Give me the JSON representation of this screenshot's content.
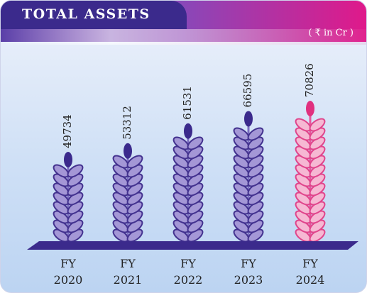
{
  "chart_data": {
    "type": "bar",
    "title": "TOTAL ASSETS",
    "subtitle": "( ₹ in Cr )",
    "categories": [
      "FY 2020",
      "FY 2021",
      "FY 2022",
      "FY 2023",
      "FY 2024"
    ],
    "values": [
      49734,
      53312,
      61531,
      66595,
      70826
    ],
    "colors": [
      "#7b6cc0",
      "#7b6cc0",
      "#7b6cc0",
      "#7b6cc0",
      "#e8559a"
    ]
  }
}
